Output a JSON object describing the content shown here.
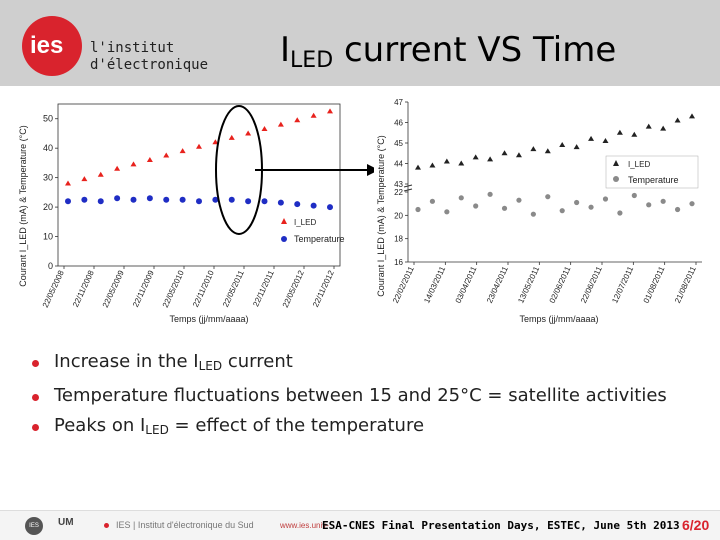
{
  "header": {
    "logo_text": "ies",
    "institute_line1": "l'institut",
    "institute_line2": "d'électronique",
    "title_main": "I",
    "title_sub": "LED",
    "title_rest": " current VS Time"
  },
  "bullets": [
    {
      "pre": "Increase in the I",
      "sub": "LED",
      "post": " current"
    },
    {
      "pre": "Temperature fluctuations between 15 and 25°C = satellite activities",
      "sub": "",
      "post": ""
    },
    {
      "pre": "Peaks on I",
      "sub": "LED",
      "post": " = effect of the temperature"
    }
  ],
  "footer": {
    "logo1": "IES",
    "logo2": "UM",
    "ies_text": "IES | Institut d'électronique du Sud",
    "url": "www.ies.univ-",
    "event": "ESA-CNES Final Presentation Days, ESTEC, June 5th 2013",
    "page": "6/20"
  },
  "colors": {
    "accent": "#d9232d",
    "led_series": "#e8221d",
    "temp_series_left": "#1f2dc4",
    "led_series_right": "#222222",
    "temp_series_right": "#8a8a8a"
  },
  "chart_data": [
    {
      "type": "scatter",
      "ylabel": "Courant I_LED (mA) & Temperature (°C)",
      "xlabel": "Temps (jj/mm/aaaa)",
      "ylim": [
        0,
        55
      ],
      "yticks": [
        0,
        10,
        20,
        30,
        40,
        50
      ],
      "x_ticks": [
        "22/05/2008",
        "22/11/2008",
        "22/05/2009",
        "22/11/2009",
        "22/05/2010",
        "22/11/2010",
        "22/05/2011",
        "22/11/2011",
        "22/05/2012",
        "22/11/2012"
      ],
      "legend": "bottom-right",
      "series": [
        {
          "name": "I_LED",
          "values": [
            28,
            29.5,
            31,
            33,
            34.5,
            36,
            37.5,
            39,
            40.5,
            42,
            43.5,
            45,
            46.5,
            48,
            49.5,
            51,
            52.5
          ]
        },
        {
          "name": "Temperature",
          "values": [
            22,
            22.5,
            22,
            23,
            22.5,
            23,
            22.5,
            22.5,
            22,
            22.5,
            22.5,
            22,
            22,
            21.5,
            21,
            20.5,
            20
          ]
        }
      ]
    },
    {
      "type": "scatter",
      "ylabel": "Courant I_LED (mA) & Temperature (°C)",
      "xlabel": "Temps (jj/mm/aaaa)",
      "upper_yticks": [
        43,
        44,
        45,
        46,
        47
      ],
      "lower_yticks": [
        16,
        18,
        20,
        22
      ],
      "x_ticks": [
        "22/02/2011",
        "14/03/2011",
        "03/04/2011",
        "23/04/2011",
        "13/05/2011",
        "02/06/2011",
        "22/06/2011",
        "12/07/2011",
        "01/08/2011",
        "21/08/2011"
      ],
      "legend": "right",
      "series": [
        {
          "name": "I_LED",
          "values": [
            43.8,
            43.9,
            44.1,
            44.0,
            44.3,
            44.2,
            44.5,
            44.4,
            44.7,
            44.6,
            44.9,
            44.8,
            45.2,
            45.1,
            45.5,
            45.4,
            45.8,
            45.7,
            46.1,
            46.3
          ]
        },
        {
          "name": "Temperature",
          "values": [
            20.5,
            21.2,
            20.3,
            21.5,
            20.8,
            21.8,
            20.6,
            21.3,
            20.1,
            21.6,
            20.4,
            21.1,
            20.7,
            21.4,
            20.2,
            21.7,
            20.9,
            21.2,
            20.5,
            21.0
          ]
        }
      ]
    }
  ]
}
